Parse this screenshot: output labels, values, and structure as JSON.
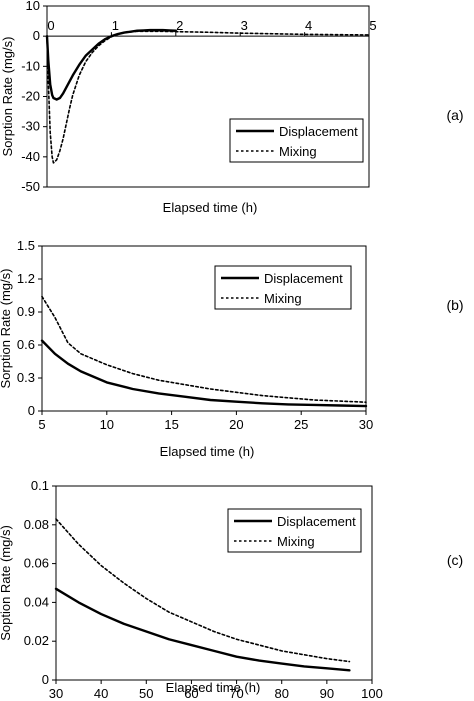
{
  "chart_data": [
    {
      "type": "line",
      "panel_label": "(a)",
      "xlabel": "Elapsed time (h)",
      "ylabel": "Sorption Rate (mg/s)",
      "xlim": [
        0,
        5
      ],
      "ylim": [
        -50,
        10
      ],
      "xticks": [
        0,
        1,
        2,
        3,
        4,
        5
      ],
      "yticks": [
        -50,
        -40,
        -30,
        -20,
        -10,
        0,
        10
      ],
      "x_axis_at_zero": true,
      "grid": false,
      "legend_position": "bottom-right",
      "series": [
        {
          "name": "Displacement",
          "style": "solid",
          "x": [
            0.0,
            0.02,
            0.05,
            0.08,
            0.1,
            0.15,
            0.2,
            0.25,
            0.3,
            0.4,
            0.5,
            0.6,
            0.7,
            0.8,
            0.9,
            1.0,
            1.1,
            1.2,
            1.3,
            1.4,
            1.5,
            1.6,
            1.7,
            1.8,
            1.9,
            2.0
          ],
          "y": [
            0,
            -8,
            -16,
            -19.5,
            -20.5,
            -21,
            -20.5,
            -19,
            -17,
            -13,
            -9.5,
            -6.5,
            -4.5,
            -2.5,
            -1,
            0,
            0.7,
            1.2,
            1.5,
            1.8,
            1.9,
            2,
            2,
            2,
            1.9,
            1.8
          ]
        },
        {
          "name": "Mixing",
          "style": "dotted",
          "x": [
            0.0,
            0.02,
            0.05,
            0.08,
            0.1,
            0.15,
            0.2,
            0.25,
            0.3,
            0.35,
            0.4,
            0.5,
            0.6,
            0.7,
            0.8,
            0.9,
            1.0,
            1.1,
            1.2,
            1.4,
            1.6,
            1.8,
            2.0,
            2.5,
            3.0,
            3.5,
            4.0,
            4.5,
            5.0
          ],
          "y": [
            0,
            -15,
            -32,
            -40,
            -42,
            -41,
            -38,
            -34,
            -29,
            -24,
            -19.5,
            -13,
            -8.5,
            -5.5,
            -3.2,
            -1.5,
            -0.2,
            0.7,
            1.2,
            1.6,
            1.6,
            1.6,
            1.5,
            1.3,
            1.0,
            0.8,
            0.6,
            0.5,
            0.4
          ]
        }
      ]
    },
    {
      "type": "line",
      "panel_label": "(b)",
      "xlabel": "Elapsed time (h)",
      "ylabel": "Sorption Rate (mg/s)",
      "xlim": [
        5,
        30
      ],
      "ylim": [
        0,
        1.5
      ],
      "xticks": [
        5,
        10,
        15,
        20,
        25,
        30
      ],
      "yticks": [
        0,
        0.3,
        0.6,
        0.9,
        1.2,
        1.5
      ],
      "grid": false,
      "legend_position": "top-right",
      "series": [
        {
          "name": "Displacement",
          "style": "solid",
          "x": [
            5,
            6,
            7,
            8,
            9,
            10,
            12,
            14,
            16,
            18,
            20,
            22,
            24,
            26,
            28,
            30
          ],
          "y": [
            0.64,
            0.52,
            0.43,
            0.36,
            0.31,
            0.26,
            0.2,
            0.16,
            0.13,
            0.1,
            0.085,
            0.07,
            0.06,
            0.055,
            0.05,
            0.045
          ]
        },
        {
          "name": "Mixing",
          "style": "dotted",
          "x": [
            5,
            6,
            7,
            8,
            9,
            10,
            12,
            14,
            16,
            18,
            20,
            22,
            24,
            26,
            28,
            30
          ],
          "y": [
            1.04,
            0.85,
            0.62,
            0.52,
            0.47,
            0.42,
            0.34,
            0.28,
            0.24,
            0.2,
            0.17,
            0.14,
            0.12,
            0.1,
            0.09,
            0.08
          ]
        }
      ]
    },
    {
      "type": "line",
      "panel_label": "(c)",
      "xlabel": "Elapsed time (h)",
      "ylabel": "Soption Rate (mg/s)",
      "xlim": [
        30,
        100
      ],
      "ylim": [
        0,
        0.1
      ],
      "xticks": [
        30,
        40,
        50,
        60,
        70,
        80,
        90,
        100
      ],
      "yticks": [
        0,
        0.02,
        0.04,
        0.06,
        0.08,
        0.1
      ],
      "grid": false,
      "legend_position": "top-right",
      "series": [
        {
          "name": "Displacement",
          "style": "solid",
          "x": [
            30,
            35,
            40,
            45,
            50,
            55,
            60,
            65,
            70,
            75,
            80,
            85,
            90,
            95
          ],
          "y": [
            0.047,
            0.04,
            0.034,
            0.029,
            0.025,
            0.021,
            0.018,
            0.015,
            0.012,
            0.01,
            0.0085,
            0.007,
            0.006,
            0.005
          ]
        },
        {
          "name": "Mixing",
          "style": "dotted",
          "x": [
            30,
            35,
            40,
            45,
            50,
            55,
            60,
            65,
            70,
            75,
            80,
            85,
            90,
            95
          ],
          "y": [
            0.083,
            0.07,
            0.059,
            0.05,
            0.042,
            0.035,
            0.03,
            0.025,
            0.021,
            0.018,
            0.015,
            0.013,
            0.011,
            0.0095
          ]
        }
      ]
    }
  ]
}
